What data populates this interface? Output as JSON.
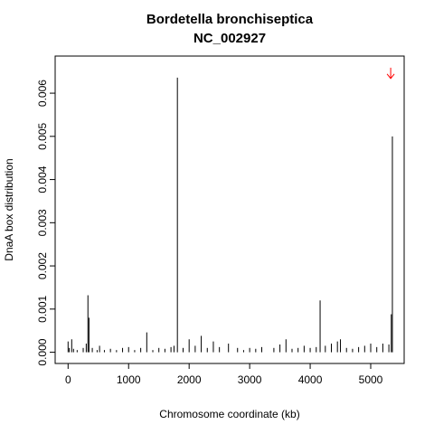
{
  "chart_data": {
    "type": "spike",
    "title": "Bordetella bronchiseptica",
    "subtitle": "NC_002927",
    "x_label": "Chromosome coordinate (kb)",
    "y_label": "DnaA box distribution",
    "color": "#000000",
    "x": [
      0,
      20,
      60,
      90,
      150,
      250,
      300,
      328,
      345,
      400,
      480,
      520,
      600,
      700,
      800,
      900,
      1000,
      1100,
      1200,
      1300,
      1400,
      1500,
      1600,
      1700,
      1750,
      1806,
      1900,
      2000,
      2100,
      2200,
      2300,
      2400,
      2500,
      2650,
      2800,
      2900,
      3000,
      3100,
      3200,
      3400,
      3500,
      3600,
      3700,
      3800,
      3900,
      4000,
      4100,
      4164,
      4250,
      4350,
      4450,
      4500,
      4600,
      4700,
      4800,
      4900,
      5000,
      5100,
      5200,
      5300,
      5340,
      5358
    ],
    "values": [
      0.00025,
      0.0001,
      0.0003,
      8e-05,
      5e-05,
      0.0001,
      0.0002,
      0.00132,
      0.0008,
      0.0001,
      5e-05,
      0.00015,
      5e-05,
      8e-05,
      5e-05,
      0.0001,
      0.00012,
      5e-05,
      0.0001,
      0.00046,
      5e-05,
      0.0001,
      8e-05,
      0.00012,
      0.00015,
      0.00636,
      0.0001,
      0.0003,
      0.00015,
      0.00038,
      0.0001,
      0.00025,
      0.00012,
      0.0002,
      0.0001,
      5e-05,
      0.0001,
      8e-05,
      0.00012,
      0.0001,
      0.00018,
      0.0003,
      8e-05,
      0.0001,
      0.00015,
      0.0001,
      0.00012,
      0.0012,
      0.00015,
      0.0002,
      0.00025,
      0.0003,
      0.0001,
      8e-05,
      0.00012,
      0.00015,
      0.0002,
      0.00012,
      0.0002,
      0.00018,
      0.00088,
      0.005
    ],
    "arrow": {
      "x": 5330,
      "y_from": 0.00659,
      "y_to": 0.00634,
      "color": "#ff0000"
    },
    "xlim": [
      -213.6,
      5552.6
    ],
    "ylim": [
      -0.00026,
      0.00686
    ],
    "xticks": [
      0,
      1000,
      2000,
      3000,
      4000,
      5000
    ],
    "yticks": [
      {
        "value": 0,
        "label": "0.000"
      },
      {
        "value": 0.001,
        "label": "0.001"
      },
      {
        "value": 0.002,
        "label": "0.002"
      },
      {
        "value": 0.003,
        "label": "0.003"
      },
      {
        "value": 0.004,
        "label": "0.004"
      },
      {
        "value": 0.005,
        "label": "0.005"
      },
      {
        "value": 0.006,
        "label": "0.006"
      }
    ]
  }
}
